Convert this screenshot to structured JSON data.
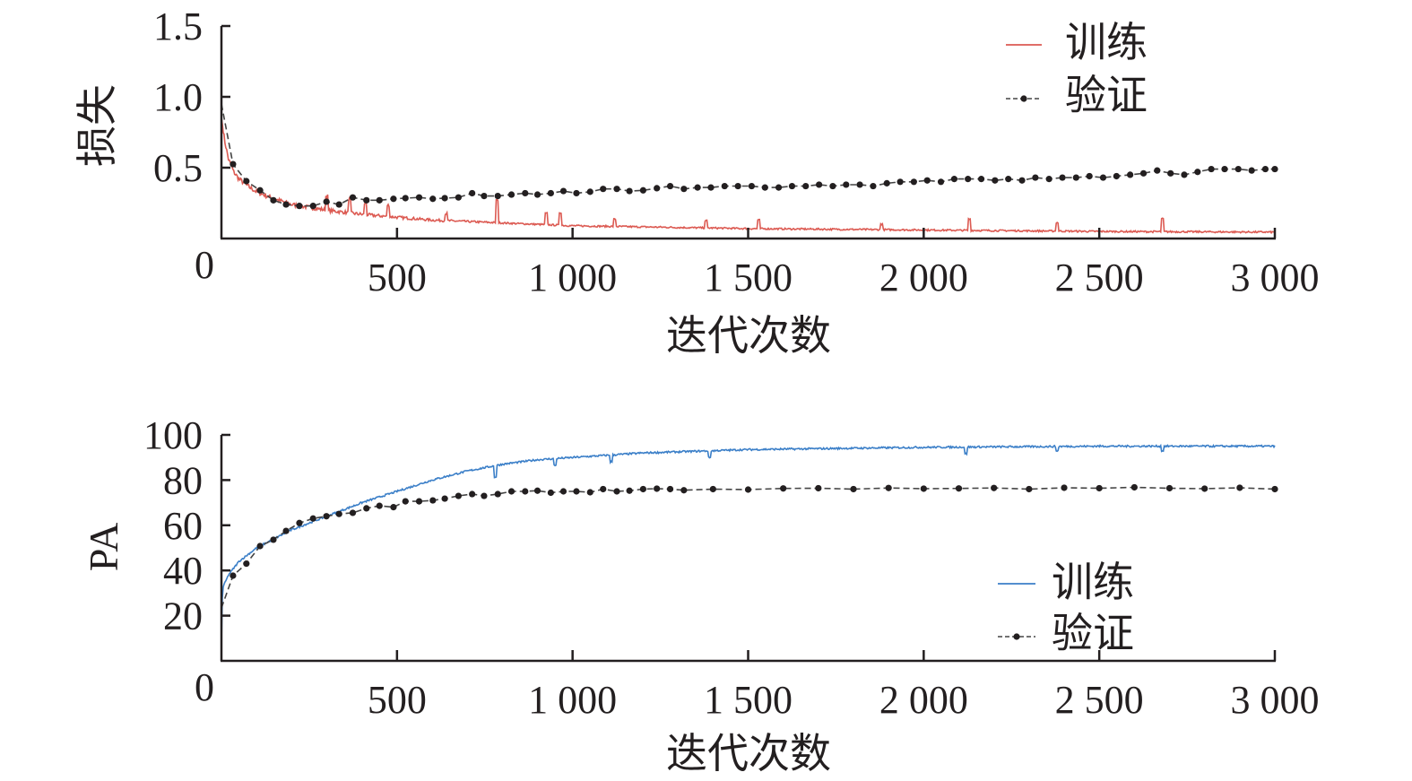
{
  "chart_data": [
    {
      "type": "line",
      "id": "loss",
      "title": "",
      "xlabel": "迭代次数",
      "ylabel": "损失",
      "xlim": [
        0,
        3000
      ],
      "ylim": [
        0,
        1.5
      ],
      "x_ticks": [
        0,
        500,
        1000,
        1500,
        2000,
        2500,
        3000
      ],
      "x_tick_labels": [
        "0",
        "500",
        "1 000",
        "1 500",
        "2 000",
        "2 500",
        "3 000"
      ],
      "y_ticks": [
        0.5,
        1.0,
        1.5
      ],
      "y_tick_labels": [
        "0.5",
        "1.0",
        "1.5"
      ],
      "legend_position": "top-right",
      "grid": false,
      "series": [
        {
          "name": "训练",
          "color": "#dc5a52",
          "style": "solid",
          "markers": false,
          "x": [
            0,
            10,
            20,
            35,
            50,
            75,
            100,
            150,
            200,
            250,
            300,
            400,
            500,
            600,
            700,
            800,
            1000,
            1250,
            1500,
            2000,
            2500,
            3000
          ],
          "y": [
            0.85,
            0.68,
            0.56,
            0.47,
            0.42,
            0.37,
            0.33,
            0.28,
            0.24,
            0.22,
            0.2,
            0.17,
            0.15,
            0.13,
            0.12,
            0.11,
            0.09,
            0.08,
            0.07,
            0.06,
            0.05,
            0.045
          ],
          "spikes": [
            [
              300,
              0.1
            ],
            [
              365,
              0.1
            ],
            [
              410,
              0.08
            ],
            [
              475,
              0.08
            ],
            [
              640,
              0.05
            ],
            [
              785,
              0.16
            ],
            [
              925,
              0.08
            ],
            [
              965,
              0.09
            ],
            [
              1120,
              0.05
            ],
            [
              1380,
              0.05
            ],
            [
              1530,
              0.06
            ],
            [
              1880,
              0.04
            ],
            [
              2130,
              0.08
            ],
            [
              2380,
              0.06
            ],
            [
              2680,
              0.09
            ]
          ]
        },
        {
          "name": "验证",
          "color": "#231f20",
          "style": "dashed",
          "markers": true,
          "x": [
            0,
            33,
            71,
            110,
            148,
            184,
            222,
            261,
            299,
            335,
            374,
            413,
            450,
            490,
            524,
            563,
            602,
            636,
            675,
            714,
            748,
            787,
            826,
            865,
            900,
            938,
            974,
            1011,
            1050,
            1087,
            1126,
            1162,
            1201,
            1240,
            1278,
            1317,
            1356,
            1394,
            1433,
            1471,
            1510,
            1548,
            1587,
            1625,
            1664,
            1702,
            1741,
            1779,
            1818,
            1856,
            1895,
            1933,
            1972,
            2010,
            2049,
            2087,
            2126,
            2164,
            2203,
            2241,
            2280,
            2318,
            2357,
            2395,
            2434,
            2472,
            2511,
            2549,
            2588,
            2626,
            2665,
            2703,
            2742,
            2780,
            2819,
            2857,
            2896,
            2934,
            2973,
            3000
          ],
          "y": [
            0.95,
            0.525,
            0.405,
            0.34,
            0.27,
            0.24,
            0.23,
            0.23,
            0.26,
            0.24,
            0.29,
            0.27,
            0.27,
            0.28,
            0.285,
            0.29,
            0.28,
            0.285,
            0.29,
            0.32,
            0.3,
            0.3,
            0.31,
            0.32,
            0.31,
            0.32,
            0.335,
            0.32,
            0.33,
            0.35,
            0.35,
            0.335,
            0.34,
            0.355,
            0.37,
            0.35,
            0.36,
            0.36,
            0.37,
            0.37,
            0.37,
            0.36,
            0.36,
            0.37,
            0.37,
            0.38,
            0.37,
            0.38,
            0.38,
            0.37,
            0.39,
            0.4,
            0.4,
            0.41,
            0.4,
            0.42,
            0.42,
            0.42,
            0.41,
            0.42,
            0.41,
            0.43,
            0.42,
            0.43,
            0.43,
            0.44,
            0.43,
            0.44,
            0.45,
            0.46,
            0.48,
            0.46,
            0.45,
            0.47,
            0.49,
            0.49,
            0.49,
            0.48,
            0.49,
            0.49
          ]
        }
      ]
    },
    {
      "type": "line",
      "id": "pa",
      "title": "",
      "xlabel": "迭代次数",
      "ylabel": "PA",
      "xlim": [
        0,
        3000
      ],
      "ylim": [
        0,
        100
      ],
      "x_ticks": [
        0,
        500,
        1000,
        1500,
        2000,
        2500,
        3000
      ],
      "x_tick_labels": [
        "0",
        "500",
        "1 000",
        "1 500",
        "2 000",
        "2 500",
        "3 000"
      ],
      "y_ticks": [
        20,
        40,
        60,
        80,
        100
      ],
      "y_tick_labels": [
        "20",
        "40",
        "60",
        "80",
        "100"
      ],
      "legend_position": "bottom-right",
      "grid": false,
      "series": [
        {
          "name": "训练",
          "color": "#3b7fc8",
          "style": "solid",
          "markers": false,
          "x": [
            0,
            3,
            20,
            50,
            100,
            150,
            200,
            300,
            400,
            500,
            600,
            700,
            800,
            900,
            1000,
            1200,
            1500,
            2000,
            2500,
            3000
          ],
          "y": [
            8,
            32,
            38,
            44,
            50,
            54,
            58,
            64,
            70,
            75,
            80,
            84,
            87,
            89,
            90,
            92,
            93.5,
            94.5,
            95,
            95
          ],
          "spikes": [
            [
              780,
              -5
            ],
            [
              950,
              -3
            ],
            [
              1110,
              -3
            ],
            [
              1390,
              -3
            ],
            [
              2120,
              -3
            ],
            [
              2380,
              -2
            ],
            [
              2680,
              -2
            ]
          ]
        },
        {
          "name": "验证",
          "color": "#231f20",
          "style": "dashed",
          "markers": true,
          "x": [
            0,
            33,
            71,
            110,
            148,
            184,
            222,
            261,
            299,
            335,
            374,
            413,
            450,
            490,
            524,
            563,
            602,
            636,
            675,
            714,
            748,
            787,
            826,
            865,
            900,
            938,
            974,
            1011,
            1050,
            1087,
            1126,
            1162,
            1201,
            1240,
            1278,
            1317,
            1400,
            1500,
            1600,
            1700,
            1800,
            1900,
            2000,
            2100,
            2200,
            2300,
            2400,
            2500,
            2600,
            2700,
            2800,
            2900,
            3000
          ],
          "y": [
            23.4,
            37.7,
            43,
            50.8,
            53.6,
            57.5,
            61,
            63,
            64,
            65,
            65.5,
            67.5,
            68.6,
            68,
            70.6,
            70.6,
            71,
            71.8,
            73,
            73.8,
            73,
            73.8,
            75,
            75,
            75.3,
            74.4,
            75,
            75,
            74.6,
            76,
            75,
            75.3,
            76,
            76.2,
            76,
            75.5,
            76,
            75.8,
            76.3,
            76.4,
            76,
            76.5,
            76.2,
            76.3,
            76.5,
            76,
            76.6,
            76.4,
            76.8,
            76.4,
            76.2,
            76.6,
            76
          ]
        }
      ]
    }
  ]
}
